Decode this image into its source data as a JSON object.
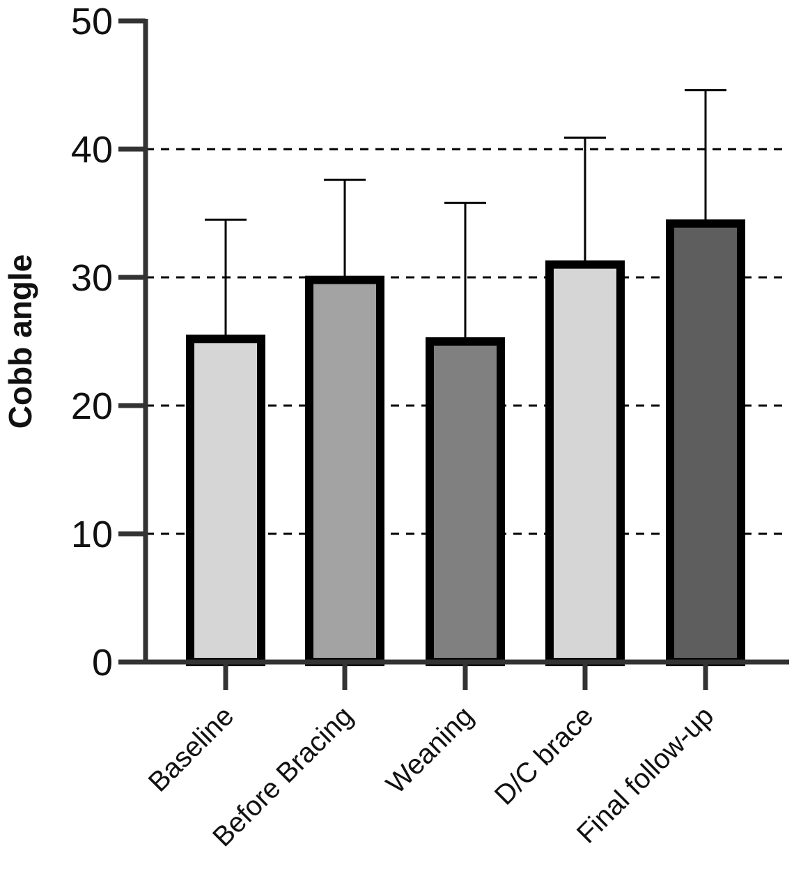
{
  "chart_data": {
    "type": "bar",
    "title": "",
    "xlabel": "",
    "ylabel": "Cobb angle",
    "categories": [
      "Baseline",
      "Before Bracing",
      "Weaning",
      "D/C brace",
      "Final follow-up"
    ],
    "values": [
      25.2,
      29.8,
      25.0,
      31.0,
      34.2
    ],
    "error_upper": [
      34.5,
      37.6,
      35.8,
      40.9,
      44.6
    ],
    "ylim": [
      0,
      50
    ],
    "yticks": [
      "0",
      "10",
      "20",
      "30",
      "40",
      "50"
    ],
    "grid": "horizontal dashed lines at 10, 20, 30, 40",
    "legend": "none",
    "colors": {
      "bar_fills": [
        "#d6d6d6",
        "#a3a3a3",
        "#808080",
        "#d6d6d6",
        "#5e5e5e"
      ],
      "bar_outline": "#000000",
      "axis": "#333333",
      "grid": "#000000",
      "error_bar": "#000000"
    }
  }
}
